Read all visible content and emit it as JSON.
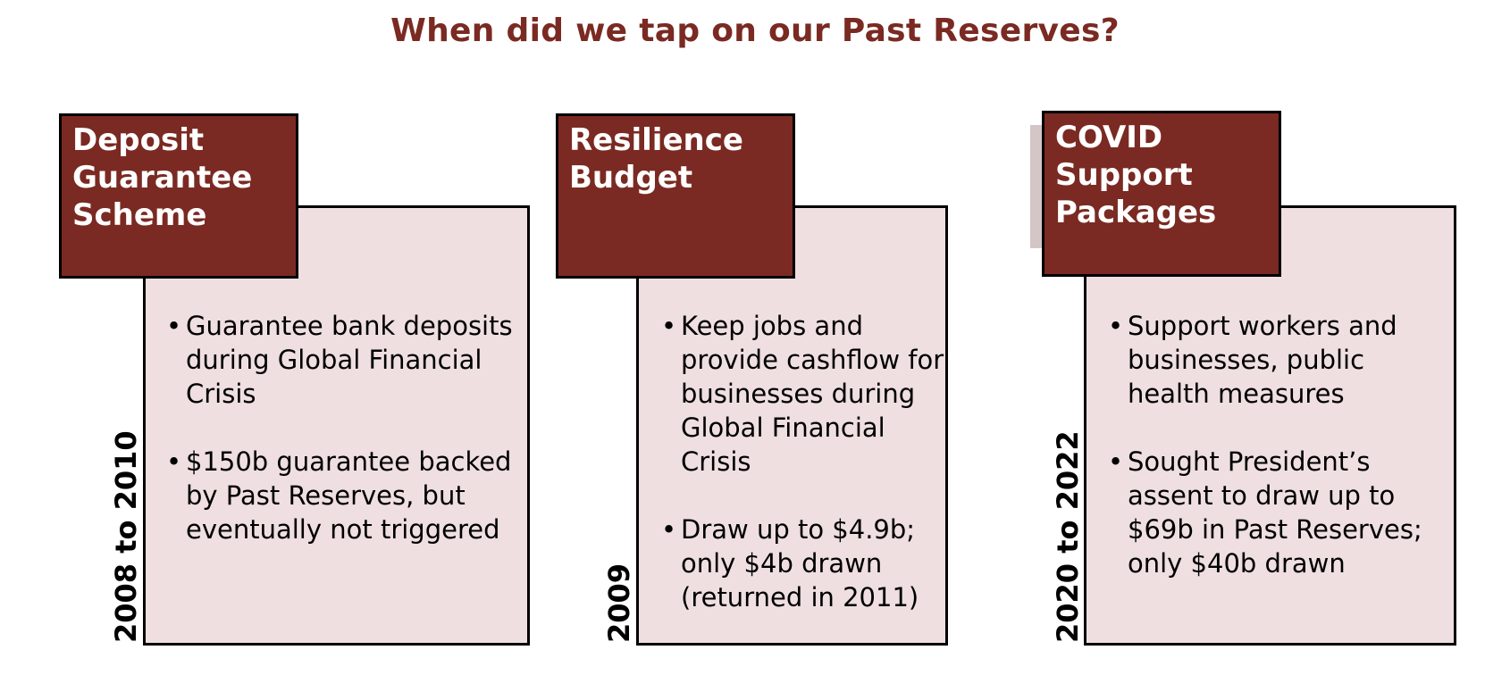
{
  "title": "When did we tap on our Past Reserves?",
  "colors": {
    "accent": "#7a2a22",
    "card_bg": "#efdfe0",
    "border": "#000000"
  },
  "columns": [
    {
      "header_lines": [
        "Deposit",
        "Guarantee",
        "Scheme"
      ],
      "year": "2008 to 2010",
      "bullets": [
        "Guarantee bank deposits during Global Financial Crisis",
        "$150b guarantee backed by Past Reserves, but eventually not triggered"
      ]
    },
    {
      "header_lines": [
        "Resilience",
        "Budget"
      ],
      "year": "2009",
      "bullets": [
        "Keep jobs and provide cashflow for businesses during Global Financial Crisis",
        "Draw up to $4.9b; only $4b drawn (returned in 2011)"
      ]
    },
    {
      "header_lines": [
        "COVID",
        "Support",
        "Packages"
      ],
      "year": "2020 to 2022",
      "bullets": [
        "Support workers and businesses, public health measures",
        "Sought President’s assent to draw up to $69b in Past Reserves; only $40b drawn"
      ]
    }
  ]
}
